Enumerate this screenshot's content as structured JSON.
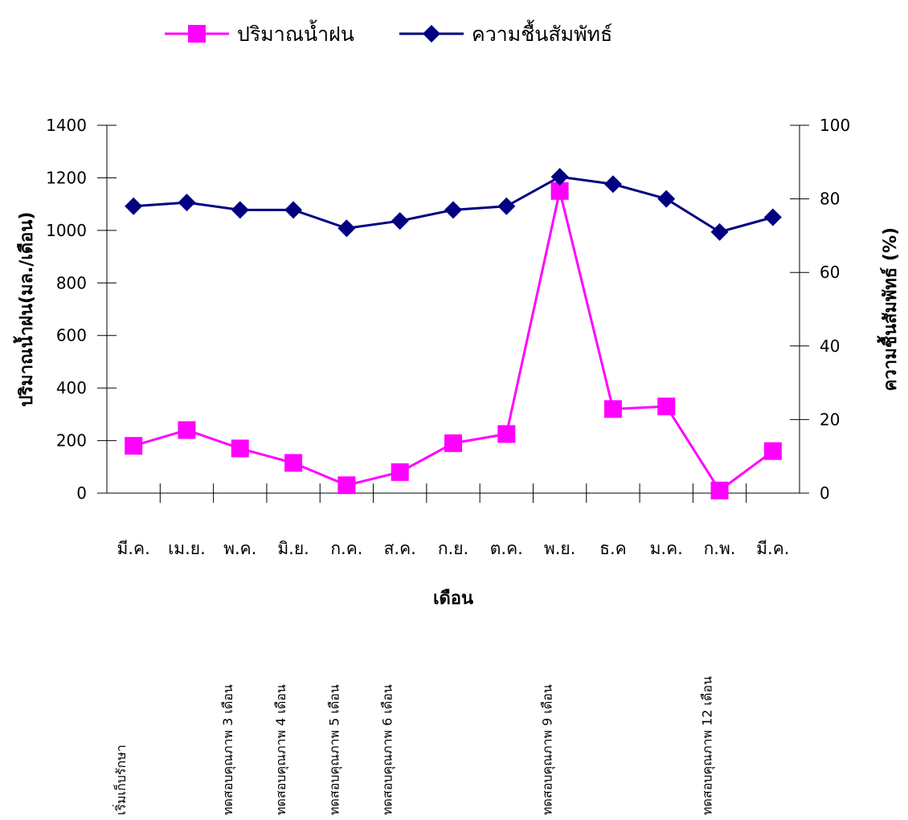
{
  "chart_data": {
    "type": "line",
    "categories": [
      "มี.ค.",
      "เม.ย.",
      "พ.ค.",
      "มิ.ย.",
      "ก.ค.",
      "ส.ค.",
      "ก.ย.",
      "ต.ค.",
      "พ.ย.",
      "ธ.ค",
      "ม.ค.",
      "ก.พ.",
      "มี.ค."
    ],
    "series": [
      {
        "name": "ปริมาณน้ำฝน",
        "axis": "left",
        "color": "#ff00ff",
        "marker": "square",
        "values": [
          180,
          240,
          170,
          115,
          30,
          80,
          190,
          225,
          1150,
          320,
          330,
          10,
          160
        ]
      },
      {
        "name": "ความชื้นสัมพัทธ์",
        "axis": "right",
        "color": "#000080",
        "marker": "diamond",
        "values": [
          78,
          79,
          77,
          77,
          72,
          74,
          77,
          78,
          86,
          84,
          80,
          71,
          75
        ]
      }
    ],
    "xlabel": "เดือน",
    "ylabel_left": "ปริมาณน้ำฝน(มล./เดือน)",
    "ylabel_right": "ความชื้นสัมพัทธ์ (%)",
    "ylim_left": [
      0,
      1400
    ],
    "yticks_left": [
      0,
      200,
      400,
      600,
      800,
      1000,
      1200,
      1400
    ],
    "ylim_right": [
      0,
      100
    ],
    "yticks_right": [
      0,
      20,
      40,
      60,
      80,
      100
    ],
    "grid": false,
    "legend_position": "top-center",
    "annotations": [
      {
        "category_index": 0,
        "text": "เริ่มเก็บรักษา"
      },
      {
        "category_index": 2,
        "text": "ทดสอบคุณภาพ 3 เดือน"
      },
      {
        "category_index": 3,
        "text": "ทดสอบคุณภาพ 4 เดือน"
      },
      {
        "category_index": 4,
        "text": "ทดสอบคุณภาพ 5 เดือน"
      },
      {
        "category_index": 5,
        "text": "ทดสอบคุณภาพ 6 เดือน"
      },
      {
        "category_index": 8,
        "text": "ทดสอบคุณภาพ 9 เดือน"
      },
      {
        "category_index": 11,
        "text": "ทดสอบคุณภาพ 12 เดือน"
      }
    ]
  }
}
